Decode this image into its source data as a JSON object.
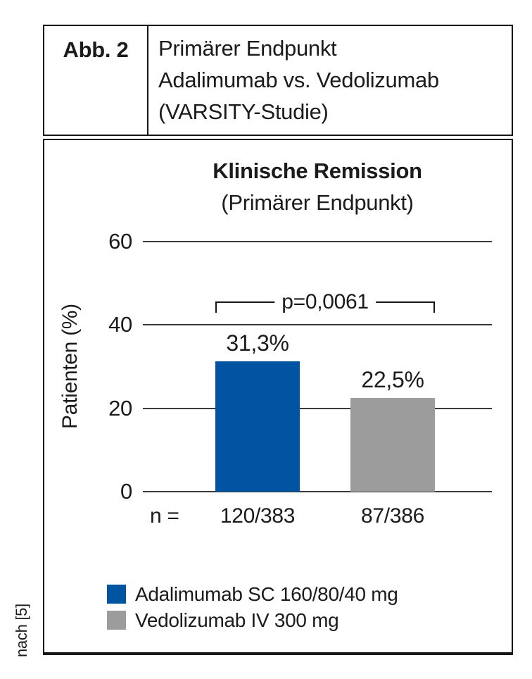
{
  "figure": {
    "label": "Abb. 2",
    "title_lines": [
      "Primärer Endpunkt",
      "Adalimumab vs. Vedolizumab",
      "(VARSITY-Studie)"
    ],
    "source": "nach [5]"
  },
  "chart_data": {
    "type": "bar",
    "title": "Klinische Remission",
    "subtitle": "(Primärer Endpunkt)",
    "ylabel": "Patienten (%)",
    "ylim": [
      0,
      60
    ],
    "yticks": [
      0,
      20,
      40,
      60
    ],
    "ytick_labels": [
      "0",
      "20",
      "40",
      "60"
    ],
    "grid": true,
    "categories": [
      "Adalimumab SC 160/80/40 mg",
      "Vedolizumab IV 300 mg"
    ],
    "values": [
      31.3,
      22.5
    ],
    "value_labels": [
      "31,3%",
      "22,5%"
    ],
    "colors": [
      "#0054a1",
      "#9b9c9b"
    ],
    "p_value_label": "p=0,0061",
    "n_prefix": "n =",
    "n_labels": [
      "120/383",
      "87/386"
    ],
    "legend": [
      {
        "label": "Adalimumab SC 160/80/40 mg"
      },
      {
        "label": "Vedolizumab IV 300 mg"
      }
    ],
    "legend_position": "bottom-left"
  }
}
